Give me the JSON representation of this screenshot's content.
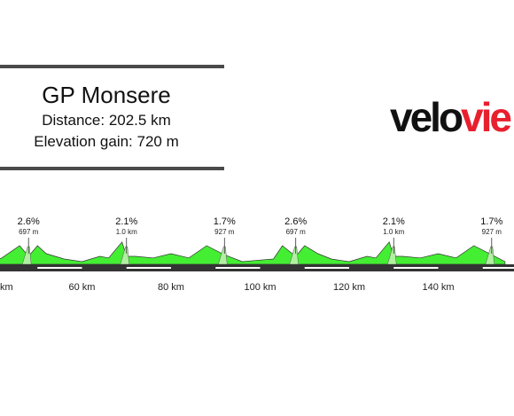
{
  "header": {
    "title": "GP Monsere",
    "distance_text": "Distance: 202.5 km",
    "elevation_text": "Elevation gain: 720 m"
  },
  "logo": {
    "part1": "velo",
    "part2": "vie",
    "color_dark": "#111111",
    "color_accent": "#e8202e"
  },
  "chart_data": {
    "type": "area",
    "title": "",
    "xlabel": "",
    "ylabel": "",
    "x_unit": "km",
    "xlim": [
      40,
      155
    ],
    "x_ticks": [
      {
        "value": 40,
        "label": "km"
      },
      {
        "value": 60,
        "label": "60 km"
      },
      {
        "value": 80,
        "label": "80 km"
      },
      {
        "value": 100,
        "label": "100 km"
      },
      {
        "value": 120,
        "label": "120 km"
      },
      {
        "value": 140,
        "label": "140 km"
      }
    ],
    "fill_color": "#44ee33",
    "climb_fill_color": "#b0f0a0",
    "profile_km": [
      40,
      42,
      46,
      48,
      50,
      52,
      56,
      60,
      64,
      66,
      69,
      70,
      72,
      76,
      80,
      84,
      88,
      92,
      96,
      100,
      103,
      105,
      108,
      110,
      113,
      116,
      120,
      124,
      126,
      129,
      130,
      132,
      136,
      140,
      144,
      148,
      152,
      155
    ],
    "profile_rel_height": [
      0.05,
      0.12,
      0.35,
      0.15,
      0.35,
      0.2,
      0.1,
      0.05,
      0.15,
      0.12,
      0.42,
      0.15,
      0.15,
      0.12,
      0.2,
      0.12,
      0.35,
      0.18,
      0.05,
      0.08,
      0.1,
      0.35,
      0.15,
      0.35,
      0.2,
      0.1,
      0.05,
      0.15,
      0.12,
      0.42,
      0.15,
      0.15,
      0.12,
      0.2,
      0.12,
      0.35,
      0.18,
      0.05
    ],
    "climbs": [
      {
        "km": 48,
        "gradient": "2.6%",
        "length": "697 m"
      },
      {
        "km": 70,
        "gradient": "2.1%",
        "length": "1.0 km"
      },
      {
        "km": 92,
        "gradient": "1.7%",
        "length": "927 m"
      },
      {
        "km": 108,
        "gradient": "2.6%",
        "length": "697 m"
      },
      {
        "km": 130,
        "gradient": "2.1%",
        "length": "1.0 km"
      },
      {
        "km": 152,
        "gradient": "1.7%",
        "length": "927 m"
      }
    ],
    "grid": false,
    "legend": "none"
  }
}
